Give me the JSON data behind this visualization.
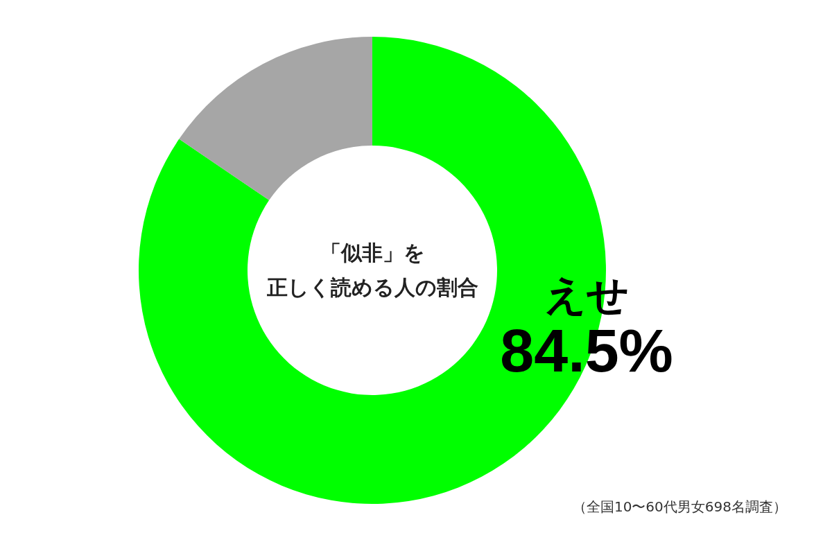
{
  "chart_data": {
    "type": "donut",
    "title": "「似非」を正しく読める人の割合",
    "categories": [
      "えせ",
      null
    ],
    "values": [
      84.5,
      15.5
    ],
    "colors": [
      "#00ff00",
      "#a6a6a6"
    ],
    "value_labels": [
      "84.5%",
      null
    ],
    "annotations": [
      "（全国10〜60代男女698名調査）"
    ]
  }
}
